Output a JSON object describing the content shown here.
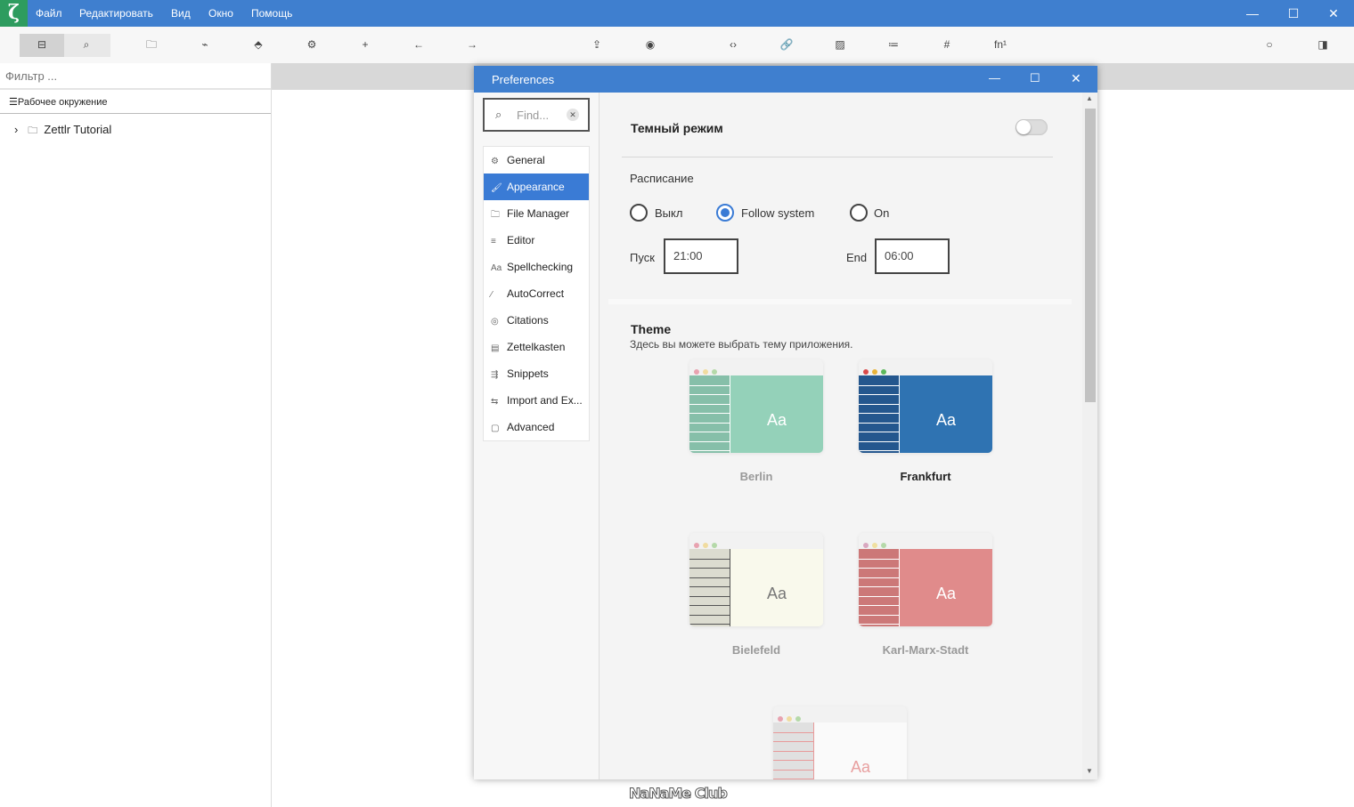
{
  "menubar": {
    "logo": "ζ",
    "items": [
      "Файл",
      "Редактировать",
      "Вид",
      "Окно",
      "Помощь"
    ]
  },
  "window_controls": {
    "minimize": "—",
    "maximize": "☐",
    "close": "✕"
  },
  "toolbar": {
    "icons": [
      "file-manager-icon",
      "search-icon",
      "open-folder-icon",
      "graph-icon",
      "tag-icon",
      "settings-icon",
      "new-file-icon",
      "back-icon",
      "forward-icon",
      "export-icon",
      "preview-icon",
      "code-icon",
      "link-icon",
      "image-icon",
      "list-icon",
      "table-icon",
      "footnote-icon",
      "pomodoro-icon",
      "sidebar-toggle-icon"
    ],
    "glyphs": [
      "⊟",
      "⌕",
      "🗀",
      "⌁",
      "⬘",
      "⚙",
      "+",
      "←",
      "→",
      "⇪",
      "◉",
      "‹›",
      "🔗",
      "▨",
      "≔",
      "#",
      "fn¹",
      "○",
      "◨"
    ]
  },
  "sidebar": {
    "filter_placeholder": "Фильтр ...",
    "workspace_label": "Рабочее окружение",
    "tree": [
      {
        "label": "Zettlr Tutorial"
      }
    ]
  },
  "preferences": {
    "title": "Preferences",
    "find_placeholder": "Find...",
    "nav": [
      {
        "label": "General",
        "icon": "⚙"
      },
      {
        "label": "Appearance",
        "icon": "🖌",
        "active": true
      },
      {
        "label": "File Manager",
        "icon": "🗀"
      },
      {
        "label": "Editor",
        "icon": "≡"
      },
      {
        "label": "Spellchecking",
        "icon": "Aa"
      },
      {
        "label": "AutoCorrect",
        "icon": "⁄"
      },
      {
        "label": "Citations",
        "icon": "◎"
      },
      {
        "label": "Zettelkasten",
        "icon": "▤"
      },
      {
        "label": "Snippets",
        "icon": "⇶"
      },
      {
        "label": "Import and Ex...",
        "icon": "⇆"
      },
      {
        "label": "Advanced",
        "icon": "▢"
      }
    ],
    "dark_mode": {
      "label": "Темный режим",
      "enabled": false
    },
    "schedule": {
      "label": "Расписание",
      "options": [
        "Выкл",
        "Follow system",
        "On"
      ],
      "selected": "Follow system",
      "start_label": "Пуск",
      "start": "21:00",
      "end_label": "End",
      "end": "06:00"
    },
    "theme": {
      "title": "Theme",
      "description": "Здесь вы можете выбрать тему приложения.",
      "selected": "Frankfurt",
      "themes": [
        {
          "name": "Berlin",
          "side": "#86bfa9",
          "main": "#94d1b9",
          "line": "#ffffff",
          "text": "#ffffff",
          "dots": [
            "#e8a3b0",
            "#f0dca0",
            "#b5d9a9"
          ]
        },
        {
          "name": "Frankfurt",
          "side": "#24578e",
          "main": "#2f73b2",
          "line": "#ffffff",
          "text": "#ffffff",
          "dots": [
            "#d94a4a",
            "#e8b33a",
            "#5cb85c"
          ]
        },
        {
          "name": "Bielefeld",
          "side": "#dcdcd0",
          "main": "#f9f9ec",
          "line": "#555555",
          "text": "#777777",
          "dots": [
            "#e8a3b0",
            "#f0dca0",
            "#b5d9a9"
          ]
        },
        {
          "name": "Karl-Marx-Stadt",
          "side": "#cc7878",
          "main": "#e08b8b",
          "line": "#ffffff",
          "text": "#ffffff",
          "dots": [
            "#d9a8c0",
            "#f0e0a0",
            "#b5d9a9"
          ]
        },
        {
          "name": "",
          "side": "#e0e0e0",
          "main": "#fafafa",
          "line": "#e89a9a",
          "text": "#e8a0a0",
          "dots": [
            "#e8a3b0",
            "#f0dca0",
            "#b5d9a9"
          ]
        }
      ]
    }
  },
  "watermark": "NaNaMe Club",
  "colors": {
    "accent": "#3a7bd5",
    "titlebar": "#3f7fcf"
  }
}
